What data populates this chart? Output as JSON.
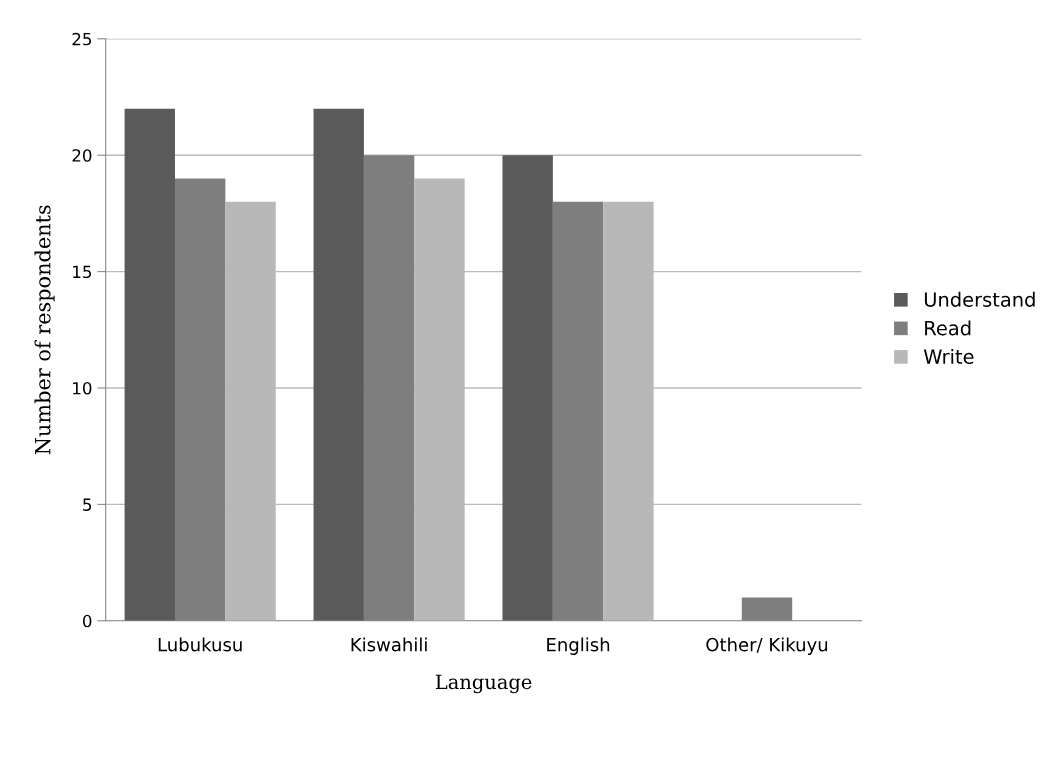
{
  "chart_data": {
    "type": "bar",
    "xlabel": "Language",
    "ylabel": "Number of respondents",
    "categories": [
      "Lubukusu",
      "Kiswahili",
      "English",
      "Other/ Kikuyu"
    ],
    "series": [
      {
        "name": "Understand",
        "color": "#5a5a5a",
        "values": [
          22,
          22,
          20,
          0
        ]
      },
      {
        "name": "Read",
        "color": "#7e7e7e",
        "values": [
          19,
          20,
          18,
          1
        ]
      },
      {
        "name": "Write",
        "color": "#b8b8b8",
        "values": [
          18,
          19,
          18,
          0
        ]
      }
    ],
    "ylim": [
      0,
      25
    ],
    "yticks": [
      0,
      5,
      10,
      15,
      20,
      25
    ],
    "grid": "y",
    "legend": "right"
  }
}
